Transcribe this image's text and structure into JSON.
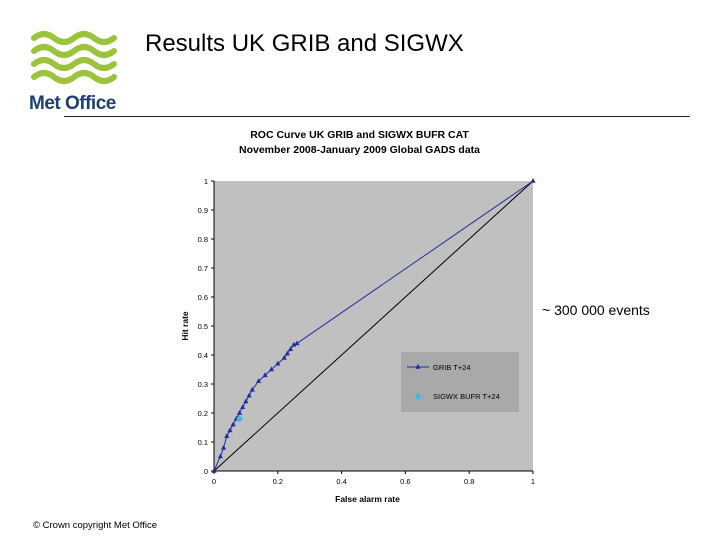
{
  "slide": {
    "title": "Results UK GRIB and SIGWX",
    "logo_text": "Met Office",
    "annotation": "~ 300 000 events",
    "copyright": "© Crown copyright   Met Office"
  },
  "colors": {
    "plot_background": "#c0c0c0",
    "grib_series": "#1f2fa0",
    "sigwx_series": "#3fb8e8",
    "logo_green": "#9bc33c",
    "logo_text": "#1f3f73"
  },
  "chart_data": {
    "type": "line",
    "title": "ROC Curve UK GRIB and SIGWX BUFR CAT",
    "subtitle": "November 2008-January 2009 Global GADS data",
    "xlabel": "False alarm rate",
    "ylabel": "Hit rate",
    "xlim": [
      0,
      1
    ],
    "ylim": [
      0,
      1
    ],
    "x_ticks": [
      "0",
      "0.2",
      "0.4",
      "0.6",
      "0.8",
      "1"
    ],
    "y_ticks": [
      "0",
      "0.1",
      "0.2",
      "0.3",
      "0.4",
      "0.5",
      "0.6",
      "0.7",
      "0.8",
      "0.9",
      "1"
    ],
    "grid": false,
    "legend_position": "bottom-right",
    "series": [
      {
        "name": "GRIB T+24",
        "marker": "triangle",
        "points": [
          [
            0.0,
            0.0
          ],
          [
            0.02,
            0.05
          ],
          [
            0.03,
            0.08
          ],
          [
            0.04,
            0.12
          ],
          [
            0.05,
            0.14
          ],
          [
            0.06,
            0.16
          ],
          [
            0.07,
            0.18
          ],
          [
            0.08,
            0.2
          ],
          [
            0.09,
            0.22
          ],
          [
            0.1,
            0.24
          ],
          [
            0.11,
            0.26
          ],
          [
            0.12,
            0.28
          ],
          [
            0.14,
            0.31
          ],
          [
            0.16,
            0.33
          ],
          [
            0.18,
            0.35
          ],
          [
            0.2,
            0.37
          ],
          [
            0.22,
            0.39
          ],
          [
            0.23,
            0.405
          ],
          [
            0.24,
            0.42
          ],
          [
            0.25,
            0.435
          ],
          [
            0.26,
            0.44
          ],
          [
            1.0,
            1.0
          ]
        ]
      },
      {
        "name": "SIGWX BUFR T+24",
        "marker": "diamond",
        "points": [
          [
            0.08,
            0.18
          ]
        ]
      },
      {
        "name": "",
        "marker": "none",
        "points": [
          [
            0,
            0
          ],
          [
            1,
            1
          ]
        ]
      }
    ]
  }
}
